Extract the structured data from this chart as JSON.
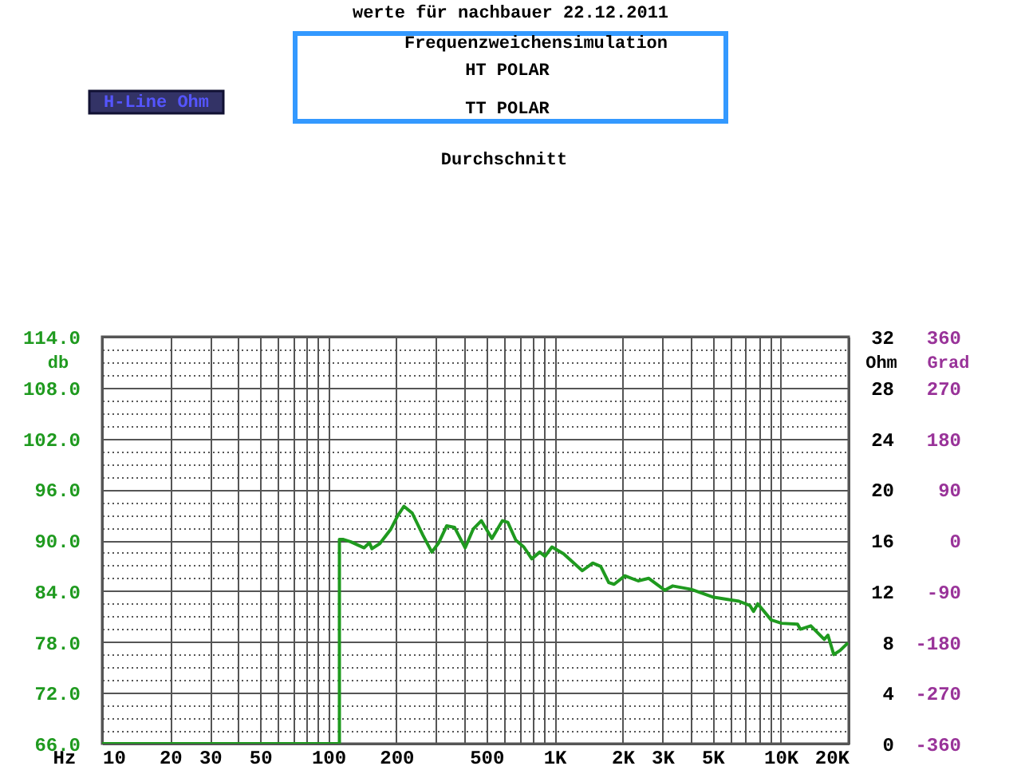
{
  "chart_data": {
    "type": "line",
    "title": "werte für nachbauer 22.12.2011",
    "subtitle": "Durchschnitt",
    "annotations": [
      "Frequenzweichensimulation",
      "HT POLAR",
      "TT POLAR",
      "H-Line Ohm"
    ],
    "xlabel": "Hz",
    "ylabel": "db",
    "y2label": "Ohm",
    "y3label": "Grad",
    "log": "x",
    "grid": true,
    "xlim": [
      10,
      20000
    ],
    "xticks": [
      10,
      20,
      30,
      {
        "value": 40,
        "label": null
      },
      50,
      {
        "value": 60,
        "label": null
      },
      {
        "value": 70,
        "label": null
      },
      {
        "value": 80,
        "label": null
      },
      {
        "value": 90,
        "label": null
      },
      100,
      200,
      {
        "value": 300,
        "label": null
      },
      {
        "value": 400,
        "label": null
      },
      500,
      {
        "value": 600,
        "label": null
      },
      {
        "value": 700,
        "label": null
      },
      {
        "value": 800,
        "label": null
      },
      {
        "value": 900,
        "label": null
      },
      {
        "value": 1000,
        "label": "1K"
      },
      {
        "value": 2000,
        "label": "2K"
      },
      {
        "value": 3000,
        "label": "3K"
      },
      {
        "value": 4000,
        "label": null
      },
      {
        "value": 5000,
        "label": "5K"
      },
      {
        "value": 6000,
        "label": null
      },
      {
        "value": 7000,
        "label": null
      },
      {
        "value": 8000,
        "label": null
      },
      {
        "value": 9000,
        "label": null
      },
      {
        "value": 10000,
        "label": "10K"
      },
      {
        "value": 20000,
        "label": "20K"
      }
    ],
    "ylim": [
      66,
      114
    ],
    "yticks": [
      {
        "value": 66,
        "label": "66.0"
      },
      {
        "value": 67.5,
        "label": null
      },
      {
        "value": 69,
        "label": null
      },
      {
        "value": 70.5,
        "label": null
      },
      {
        "value": 72,
        "label": "72.0"
      },
      {
        "value": 73.5,
        "label": null
      },
      {
        "value": 75,
        "label": null
      },
      {
        "value": 76.5,
        "label": null
      },
      {
        "value": 78,
        "label": "78.0"
      },
      {
        "value": 79.5,
        "label": null
      },
      {
        "value": 81,
        "label": null
      },
      {
        "value": 82.5,
        "label": null
      },
      {
        "value": 84,
        "label": "84.0"
      },
      {
        "value": 85.5,
        "label": null
      },
      {
        "value": 87,
        "label": null
      },
      {
        "value": 88.5,
        "label": null
      },
      {
        "value": 90,
        "label": "90.0"
      },
      {
        "value": 91.5,
        "label": null
      },
      {
        "value": 93,
        "label": null
      },
      {
        "value": 94.5,
        "label": null
      },
      {
        "value": 96,
        "label": "96.0"
      },
      {
        "value": 97.5,
        "label": null
      },
      {
        "value": 99,
        "label": null
      },
      {
        "value": 100.5,
        "label": null
      },
      {
        "value": 102,
        "label": "102.0"
      },
      {
        "value": 103.5,
        "label": null
      },
      {
        "value": 105,
        "label": null
      },
      {
        "value": 106.5,
        "label": null
      },
      {
        "value": 108,
        "label": "108.0"
      },
      {
        "value": 109.5,
        "label": null
      },
      {
        "value": 111,
        "label": null
      },
      {
        "value": 112.5,
        "label": null
      },
      {
        "value": 114,
        "label": "114.0"
      }
    ],
    "y2lim": [
      0,
      32
    ],
    "y2ticks": [
      0,
      4,
      8,
      12,
      16,
      20,
      24,
      28,
      32
    ],
    "y3lim": [
      -360,
      360
    ],
    "y3ticks": [
      -360,
      -270,
      -180,
      -90,
      0,
      90,
      180,
      270,
      360
    ],
    "series": [
      {
        "color": "#1f9a1f",
        "x": [
          10,
          112,
          112,
          116,
          126,
          144,
          152,
          156,
          169,
          189,
          203,
          216,
          235,
          262,
          287,
          308,
          334,
          362,
          403,
          437,
          475,
          529,
          589,
          622,
          675,
          732,
          794,
          861,
          908,
          975,
          1097,
          1328,
          1477,
          1602,
          1738,
          1836,
          2048,
          2344,
          2614,
          3072,
          3334,
          4027,
          5003,
          6550,
          7310,
          7590,
          7925,
          9076,
          10100,
          11880,
          12220,
          13600,
          15600,
          16190,
          17180,
          18330,
          19860
        ],
        "values": [
          66,
          66,
          90.1,
          90.1,
          89.8,
          89.1,
          89.7,
          89.0,
          89.6,
          91.3,
          92.9,
          94.0,
          93.2,
          90.6,
          88.6,
          89.7,
          91.7,
          91.5,
          89.1,
          91.3,
          92.3,
          90.2,
          92.3,
          92.1,
          90.0,
          89.2,
          87.8,
          88.6,
          88.1,
          89.2,
          88.4,
          86.4,
          87.3,
          86.9,
          85.0,
          84.8,
          85.8,
          85.2,
          85.5,
          84.1,
          84.6,
          84.2,
          83.3,
          82.8,
          82.3,
          81.6,
          82.5,
          80.6,
          80.2,
          80.1,
          79.5,
          79.9,
          78.3,
          78.8,
          76.5,
          77.0,
          77.9
        ]
      }
    ]
  }
}
